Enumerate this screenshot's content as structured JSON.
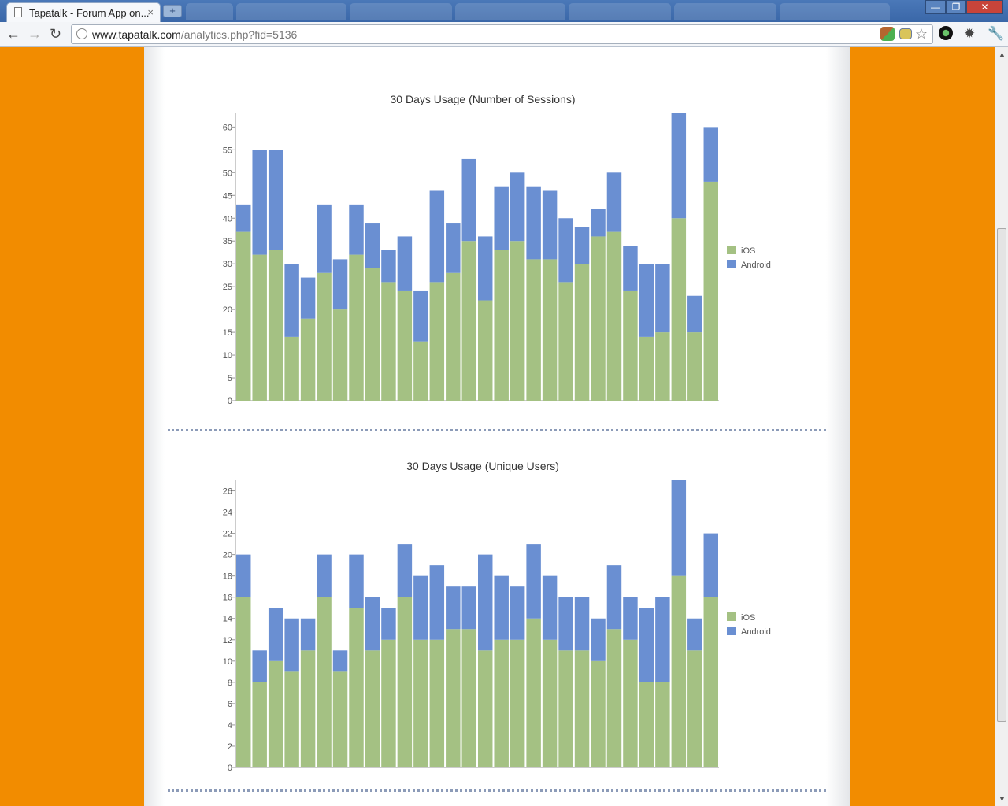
{
  "browser": {
    "tab_title": "Tapatalk - Forum App on...",
    "tab_close": "×",
    "new_tab": "+",
    "url_host": "www.tapatalk.com",
    "url_path": "/analytics.php?fid=5136",
    "window_buttons": [
      "—",
      "❐",
      "✕"
    ]
  },
  "charts": [
    {
      "title": "30 Days Usage (Number of Sessions)",
      "legend": [
        "iOS",
        "Android"
      ],
      "yticks": [
        0,
        5,
        10,
        15,
        20,
        25,
        30,
        35,
        40,
        45,
        50,
        55,
        60
      ]
    },
    {
      "title": "30 Days Usage (Unique Users)",
      "legend": [
        "iOS",
        "Android"
      ],
      "yticks": [
        0,
        2,
        4,
        6,
        8,
        10,
        12,
        14,
        16,
        18,
        20,
        22,
        24,
        26
      ]
    }
  ],
  "chart_data": [
    {
      "type": "bar",
      "stacked": true,
      "title": "30 Days Usage (Number of Sessions)",
      "ylim": [
        0,
        63
      ],
      "legend_position": "right",
      "colors": {
        "iOS": "#a4c183",
        "Android": "#6a8fd2"
      },
      "series": [
        {
          "name": "iOS",
          "values": [
            37,
            32,
            33,
            14,
            18,
            28,
            20,
            32,
            29,
            26,
            24,
            13,
            26,
            28,
            35,
            22,
            33,
            35,
            31,
            31,
            26,
            30,
            36,
            37,
            24,
            14,
            15,
            40,
            15,
            48
          ]
        },
        {
          "name": "Android",
          "values": [
            6,
            23,
            22,
            16,
            9,
            15,
            11,
            11,
            10,
            7,
            12,
            11,
            20,
            11,
            18,
            14,
            14,
            15,
            16,
            15,
            14,
            8,
            6,
            13,
            10,
            16,
            15,
            23,
            8,
            12
          ]
        }
      ]
    },
    {
      "type": "bar",
      "stacked": true,
      "title": "30 Days Usage (Unique Users)",
      "ylim": [
        0,
        27
      ],
      "legend_position": "right",
      "colors": {
        "iOS": "#a4c183",
        "Android": "#6a8fd2"
      },
      "series": [
        {
          "name": "iOS",
          "values": [
            16,
            8,
            10,
            9,
            11,
            16,
            9,
            15,
            11,
            12,
            16,
            12,
            12,
            13,
            13,
            11,
            12,
            12,
            14,
            12,
            11,
            11,
            10,
            13,
            12,
            8,
            8,
            18,
            11,
            16
          ]
        },
        {
          "name": "Android",
          "values": [
            4,
            3,
            5,
            5,
            3,
            4,
            2,
            5,
            5,
            3,
            5,
            6,
            7,
            4,
            4,
            9,
            6,
            5,
            7,
            6,
            5,
            5,
            4,
            6,
            4,
            7,
            8,
            9,
            3,
            6
          ]
        }
      ]
    }
  ]
}
